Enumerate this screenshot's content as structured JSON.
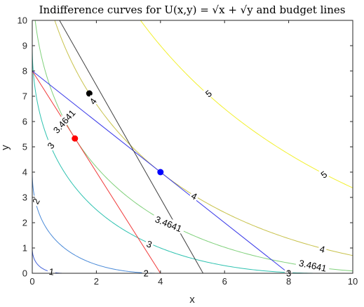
{
  "chart_data": {
    "type": "line",
    "title": "Indifference curves for U(x,y) = √x + √y and budget lines",
    "xlabel": "x",
    "ylabel": "y",
    "xlim": [
      0,
      10
    ],
    "ylim": [
      0,
      10
    ],
    "xticks": [
      "0",
      "2",
      "4",
      "6",
      "8",
      "10"
    ],
    "yticks": [
      "0",
      "1",
      "2",
      "3",
      "4",
      "5",
      "6",
      "7",
      "8",
      "9",
      "10"
    ],
    "grid": false,
    "legend": "none",
    "indifference_curves": [
      {
        "level": 1,
        "color": "#3f5fd8"
      },
      {
        "level": 2,
        "color": "#4a8ad8"
      },
      {
        "level": 3,
        "color": "#2ec2b0"
      },
      {
        "level": 3.4641,
        "color": "#7fd07a"
      },
      {
        "level": 4,
        "color": "#c8c24c"
      },
      {
        "level": 5,
        "color": "#f2f02e"
      }
    ],
    "contour_labels": [
      {
        "text": "1",
        "x": 0.6,
        "y": 0.06,
        "angle": 8
      },
      {
        "text": "2",
        "x": 3.55,
        "y": 0.0,
        "angle": 0
      },
      {
        "text": "2",
        "x": 0.12,
        "y": 2.85,
        "angle": -62
      },
      {
        "text": "3",
        "x": 3.65,
        "y": 1.15,
        "angle": 20
      },
      {
        "text": "3",
        "x": 0.58,
        "y": 5.05,
        "angle": -52
      },
      {
        "text": "3",
        "x": 8.0,
        "y": 0.0,
        "angle": 0
      },
      {
        "text": "3.4641",
        "x": 1.0,
        "y": 6.0,
        "angle": -48
      },
      {
        "text": "3.4641",
        "x": 4.25,
        "y": 1.95,
        "angle": 22
      },
      {
        "text": "3.4641",
        "x": 8.75,
        "y": 0.3,
        "angle": 12
      },
      {
        "text": "4",
        "x": 1.9,
        "y": 6.8,
        "angle": -55
      },
      {
        "text": "4",
        "x": 5.05,
        "y": 3.05,
        "angle": 28
      },
      {
        "text": "4",
        "x": 9.05,
        "y": 0.95,
        "angle": 14
      },
      {
        "text": "5",
        "x": 5.5,
        "y": 7.1,
        "angle": -38
      },
      {
        "text": "5",
        "x": 9.1,
        "y": 3.9,
        "angle": -35
      }
    ],
    "budget_lines": [
      {
        "x": [
          0,
          4
        ],
        "y": [
          8,
          0
        ],
        "color": "#f03a3a"
      },
      {
        "x": [
          0,
          8
        ],
        "y": [
          8,
          0
        ],
        "color": "#3a3ae8"
      },
      {
        "x": [
          0.85,
          5.33
        ],
        "y": [
          10,
          0
        ],
        "color": "#404040"
      }
    ],
    "optimal_points": [
      {
        "x": 1.33,
        "y": 5.33,
        "color": "#ff0000"
      },
      {
        "x": 4.0,
        "y": 4.0,
        "color": "#0000ff"
      },
      {
        "x": 1.78,
        "y": 7.11,
        "color": "#000000"
      }
    ],
    "colors": {
      "axis": "#262626",
      "background": "#ffffff"
    }
  }
}
